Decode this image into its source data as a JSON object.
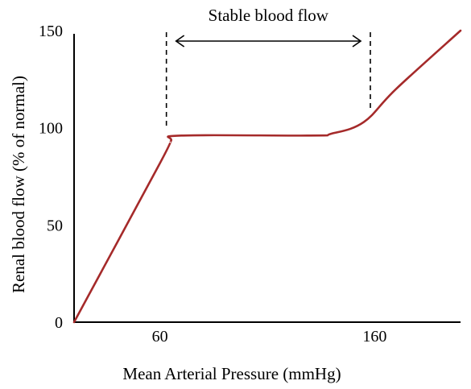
{
  "chart_data": {
    "type": "line",
    "xlabel": "Mean Arterial Pressure (mmHg)",
    "ylabel": "Renal blood flow (% of normal)",
    "x_ticks": [
      60,
      160
    ],
    "y_ticks": [
      0,
      50,
      100,
      150
    ],
    "xlim": [
      20,
      200
    ],
    "ylim": [
      0,
      150
    ],
    "grid": false,
    "series": [
      {
        "color": "#a52a2a",
        "x": [
          20,
          60,
          65,
          70,
          130,
          140,
          155,
          170,
          200
        ],
        "y": [
          0,
          81.8,
          93,
          96,
          96,
          97,
          103,
          120,
          150
        ]
      }
    ],
    "annotations": {
      "range_label": "Stable blood flow",
      "range_x": [
        63,
        158
      ]
    }
  }
}
